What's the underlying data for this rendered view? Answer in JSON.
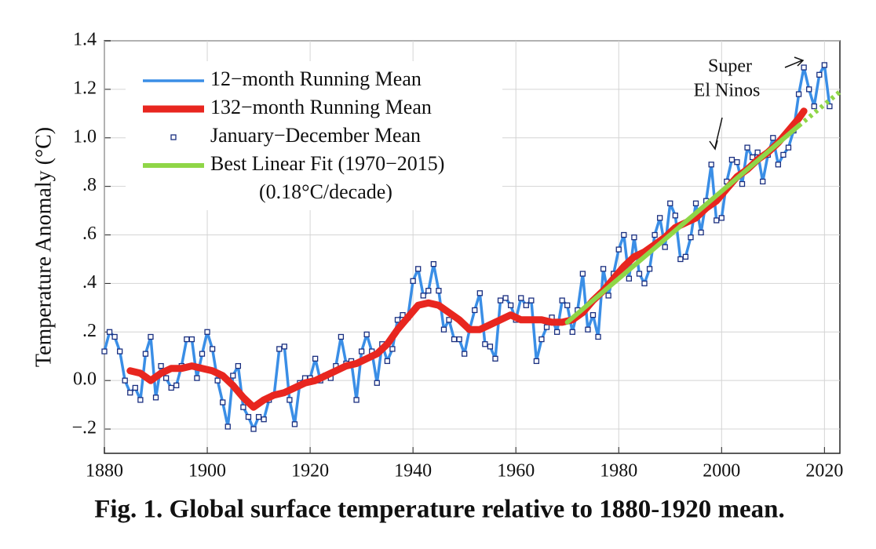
{
  "chart_data": {
    "type": "line",
    "caption": "Fig. 1.  Global surface temperature relative to 1880-1920 mean.",
    "y_label": "Temperature Anomaly (°C)",
    "annotations": [
      "Super",
      "El Ninos"
    ],
    "legend_note": "(0.18°C/decade)",
    "xlim": [
      1880,
      2023
    ],
    "ylim": [
      -0.3,
      1.4
    ],
    "xticks": [
      1880,
      1900,
      1920,
      1940,
      1960,
      1980,
      2000,
      2020
    ],
    "yticks": [
      {
        "value": -0.2,
        "label": "−.2"
      },
      {
        "value": 0,
        "label": "0.0"
      },
      {
        "value": 0.2,
        "label": ".2"
      },
      {
        "value": 0.4,
        "label": ".4"
      },
      {
        "value": 0.6,
        "label": ".6"
      },
      {
        "value": 0.8,
        "label": ".8"
      },
      {
        "value": 1.0,
        "label": "1.0"
      },
      1.2,
      1.4
    ],
    "grid": true,
    "x": [
      1880,
      1881,
      1882,
      1883,
      1884,
      1885,
      1886,
      1887,
      1888,
      1889,
      1890,
      1891,
      1892,
      1893,
      1894,
      1895,
      1896,
      1897,
      1898,
      1899,
      1900,
      1901,
      1902,
      1903,
      1904,
      1905,
      1906,
      1907,
      1908,
      1909,
      1910,
      1911,
      1912,
      1913,
      1914,
      1915,
      1916,
      1917,
      1918,
      1919,
      1920,
      1921,
      1922,
      1923,
      1924,
      1925,
      1926,
      1927,
      1928,
      1929,
      1930,
      1931,
      1932,
      1933,
      1934,
      1935,
      1936,
      1937,
      1938,
      1939,
      1940,
      1941,
      1942,
      1943,
      1944,
      1945,
      1946,
      1947,
      1948,
      1949,
      1950,
      1951,
      1952,
      1953,
      1954,
      1955,
      1956,
      1957,
      1958,
      1959,
      1960,
      1961,
      1962,
      1963,
      1964,
      1965,
      1966,
      1967,
      1968,
      1969,
      1970,
      1971,
      1972,
      1973,
      1974,
      1975,
      1976,
      1977,
      1978,
      1979,
      1980,
      1981,
      1982,
      1983,
      1984,
      1985,
      1986,
      1987,
      1988,
      1989,
      1990,
      1991,
      1992,
      1993,
      1994,
      1995,
      1996,
      1997,
      1998,
      1999,
      2000,
      2001,
      2002,
      2003,
      2004,
      2005,
      2006,
      2007,
      2008,
      2009,
      2010,
      2011,
      2012,
      2013,
      2014,
      2015,
      2016,
      2017,
      2018,
      2019,
      2020,
      2021
    ],
    "series": [
      {
        "name": "12−month Running Mean",
        "color": "#3a8ee6",
        "style": "line",
        "values": [
          0.12,
          0.2,
          0.18,
          0.12,
          0.0,
          -0.05,
          -0.03,
          -0.08,
          0.11,
          0.18,
          -0.07,
          0.06,
          0.01,
          -0.03,
          -0.02,
          0.06,
          0.17,
          0.17,
          0.01,
          0.11,
          0.2,
          0.13,
          0.0,
          -0.09,
          -0.19,
          0.02,
          0.06,
          -0.11,
          -0.15,
          -0.2,
          -0.15,
          -0.16,
          -0.08,
          -0.06,
          0.13,
          0.14,
          -0.08,
          -0.18,
          -0.01,
          0.01,
          0.01,
          0.09,
          0.0,
          0.02,
          0.01,
          0.06,
          0.18,
          0.07,
          0.08,
          -0.08,
          0.12,
          0.19,
          0.12,
          -0.01,
          0.15,
          0.08,
          0.13,
          0.25,
          0.27,
          0.26,
          0.41,
          0.46,
          0.35,
          0.37,
          0.48,
          0.37,
          0.21,
          0.25,
          0.17,
          0.17,
          0.11,
          0.21,
          0.29,
          0.36,
          0.15,
          0.14,
          0.09,
          0.33,
          0.34,
          0.31,
          0.25,
          0.34,
          0.31,
          0.33,
          0.08,
          0.17,
          0.22,
          0.26,
          0.2,
          0.33,
          0.31,
          0.2,
          0.29,
          0.44,
          0.21,
          0.27,
          0.18,
          0.46,
          0.35,
          0.44,
          0.54,
          0.6,
          0.42,
          0.59,
          0.44,
          0.4,
          0.46,
          0.6,
          0.67,
          0.55,
          0.73,
          0.68,
          0.5,
          0.51,
          0.59,
          0.73,
          0.61,
          0.74,
          0.89,
          0.66,
          0.67,
          0.82,
          0.91,
          0.9,
          0.81,
          0.96,
          0.92,
          0.94,
          0.82,
          0.93,
          1.0,
          0.89,
          0.93,
          0.96,
          1.03,
          1.18,
          1.29,
          1.2,
          1.13,
          1.26,
          1.3,
          1.13
        ]
      },
      {
        "name": "132−month Running Mean",
        "color": "#e8261f",
        "style": "thick",
        "x": [
          1885,
          1887,
          1889,
          1891,
          1893,
          1895,
          1897,
          1899,
          1901,
          1903,
          1905,
          1907,
          1909,
          1911,
          1913,
          1915,
          1917,
          1919,
          1921,
          1923,
          1925,
          1927,
          1929,
          1931,
          1933,
          1935,
          1937,
          1939,
          1941,
          1943,
          1945,
          1947,
          1949,
          1951,
          1953,
          1955,
          1957,
          1959,
          1961,
          1963,
          1965,
          1967,
          1969,
          1971,
          1973,
          1975,
          1977,
          1979,
          1981,
          1983,
          1985,
          1987,
          1989,
          1991,
          1993,
          1995,
          1997,
          1999,
          2001,
          2003,
          2005,
          2007,
          2009,
          2011,
          2013,
          2015,
          2016
        ],
        "values": [
          0.04,
          0.03,
          0.0,
          0.03,
          0.05,
          0.05,
          0.06,
          0.05,
          0.04,
          0.02,
          -0.02,
          -0.07,
          -0.11,
          -0.08,
          -0.06,
          -0.05,
          -0.03,
          -0.01,
          0.0,
          0.02,
          0.04,
          0.06,
          0.07,
          0.09,
          0.11,
          0.15,
          0.21,
          0.26,
          0.31,
          0.32,
          0.31,
          0.28,
          0.25,
          0.21,
          0.21,
          0.23,
          0.25,
          0.27,
          0.25,
          0.25,
          0.25,
          0.24,
          0.24,
          0.25,
          0.28,
          0.33,
          0.37,
          0.42,
          0.47,
          0.51,
          0.53,
          0.56,
          0.59,
          0.63,
          0.65,
          0.67,
          0.71,
          0.74,
          0.79,
          0.84,
          0.87,
          0.91,
          0.94,
          0.98,
          1.03,
          1.08,
          1.11
        ]
      },
      {
        "name": "January−December Mean",
        "color": "#1a2f80",
        "style": "squares",
        "values": [
          0.12,
          0.2,
          0.18,
          0.12,
          0.0,
          -0.05,
          -0.03,
          -0.08,
          0.11,
          0.18,
          -0.07,
          0.06,
          0.01,
          -0.03,
          -0.02,
          0.06,
          0.17,
          0.17,
          0.01,
          0.11,
          0.2,
          0.13,
          0.0,
          -0.09,
          -0.19,
          0.02,
          0.06,
          -0.11,
          -0.15,
          -0.2,
          -0.15,
          -0.16,
          -0.08,
          -0.06,
          0.13,
          0.14,
          -0.08,
          -0.18,
          -0.01,
          0.01,
          0.01,
          0.09,
          0.0,
          0.02,
          0.01,
          0.06,
          0.18,
          0.07,
          0.08,
          -0.08,
          0.12,
          0.19,
          0.12,
          -0.01,
          0.15,
          0.08,
          0.13,
          0.25,
          0.27,
          0.26,
          0.41,
          0.46,
          0.35,
          0.37,
          0.48,
          0.37,
          0.21,
          0.25,
          0.17,
          0.17,
          0.11,
          0.21,
          0.29,
          0.36,
          0.15,
          0.14,
          0.09,
          0.33,
          0.34,
          0.31,
          0.25,
          0.34,
          0.31,
          0.33,
          0.08,
          0.17,
          0.22,
          0.26,
          0.2,
          0.33,
          0.31,
          0.2,
          0.29,
          0.44,
          0.21,
          0.27,
          0.18,
          0.46,
          0.35,
          0.44,
          0.54,
          0.6,
          0.42,
          0.59,
          0.44,
          0.4,
          0.46,
          0.6,
          0.67,
          0.55,
          0.73,
          0.68,
          0.5,
          0.51,
          0.59,
          0.73,
          0.61,
          0.74,
          0.89,
          0.66,
          0.67,
          0.82,
          0.91,
          0.9,
          0.81,
          0.96,
          0.92,
          0.94,
          0.82,
          0.93,
          1.0,
          0.89,
          0.93,
          0.96,
          1.03,
          1.18,
          1.29,
          1.2,
          1.13,
          1.26,
          1.3,
          1.13
        ]
      },
      {
        "name": "Best Linear Fit (1970−2015)",
        "color": "#8fd647",
        "style": "fit",
        "x": [
          1970,
          2015
        ],
        "values": [
          0.24,
          1.05
        ]
      },
      {
        "color": "#8fd647",
        "style": "dotted",
        "x": [
          2015,
          2023
        ],
        "values": [
          1.05,
          1.19
        ]
      }
    ]
  }
}
